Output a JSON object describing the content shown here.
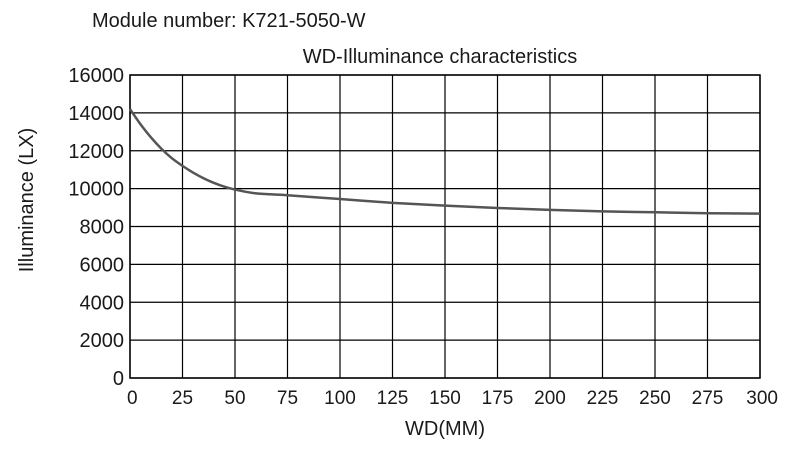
{
  "header": {
    "module_label": "Module number: K721-5050-W"
  },
  "chart_data": {
    "type": "line",
    "title": "WD-Illuminance characteristics",
    "xlabel": "WD(MM)",
    "ylabel": "Illuminance (LX)",
    "xlim": [
      0,
      300
    ],
    "ylim": [
      0,
      16000
    ],
    "x_ticks": [
      0,
      25,
      50,
      75,
      100,
      125,
      150,
      175,
      200,
      225,
      250,
      275,
      300
    ],
    "y_ticks": [
      0,
      2000,
      4000,
      6000,
      8000,
      10000,
      12000,
      14000,
      16000
    ],
    "grid": true,
    "legend": "none",
    "line_color": "#555555",
    "series": [
      {
        "x": [
          0,
          5,
          10,
          15,
          20,
          25,
          30,
          35,
          40,
          45,
          50,
          60,
          75,
          100,
          125,
          150,
          175,
          200,
          225,
          250,
          275,
          300
        ],
        "values": [
          14200,
          13400,
          12700,
          12100,
          11600,
          11200,
          10850,
          10550,
          10300,
          10100,
          9950,
          9750,
          9650,
          9450,
          9250,
          9100,
          8980,
          8880,
          8800,
          8750,
          8700,
          8680
        ]
      }
    ]
  }
}
